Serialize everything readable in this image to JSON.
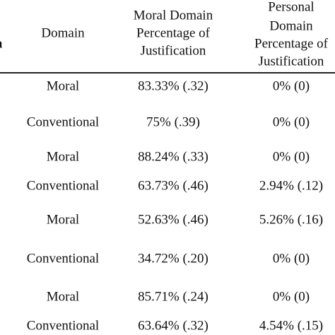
{
  "table": {
    "header": [
      [
        "n"
      ],
      [
        "Domain"
      ],
      [
        "Moral Domain",
        "Percentage of",
        "Justification"
      ],
      [
        "Personal",
        "Domain",
        "Percentage of",
        "Justification"
      ]
    ],
    "rows": [
      [
        "Moral",
        "83.33% (.32)",
        "0% (0)"
      ],
      [
        "Conventional",
        "75% (.39)",
        "0% (0)"
      ],
      [
        "Moral",
        "88.24% (.33)",
        "0% (0)"
      ],
      [
        "Conventional",
        "63.73% (.46)",
        "2.94% (.12)"
      ],
      [
        "Moral",
        "52.63% (.46)",
        "5.26% (.16)"
      ],
      [
        "Conventional",
        "34.72% (.20)",
        "0% (0)"
      ],
      [
        "Moral",
        "85.71% (.24)",
        "0% (0)"
      ],
      [
        "Conventional",
        "63.64% (.32)",
        "4.54% (.15)"
      ]
    ]
  }
}
